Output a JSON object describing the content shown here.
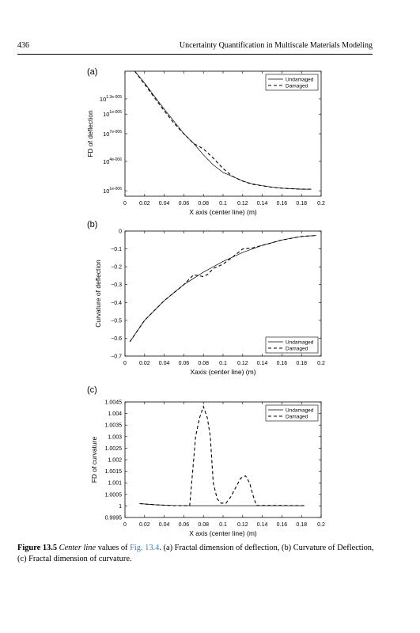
{
  "page": {
    "number": "436",
    "running_title": "Uncertainty Quantification in Multiscale Materials Modeling"
  },
  "caption": {
    "label": "Figure 13.5",
    "italic": "Center line",
    "pre_link": " values of ",
    "link": "Fig. 13.4",
    "rest": ". (a) Fractal dimension of deflection, (b) Curvature of Deflection, (c) Fractal dimension of curvature."
  },
  "chart_data": [
    {
      "type": "line",
      "panel_label": "(a)",
      "xlabel": "X axis (center line) (m)",
      "ylabel": "FD of deflection",
      "xlim": [
        0,
        0.2
      ],
      "ylim": [
        1.0000012,
        1.0000075
      ],
      "x_ticks": [
        0,
        0.02,
        0.04,
        0.06,
        0.08,
        0.1,
        0.12,
        0.14,
        0.16,
        0.18,
        0.2
      ],
      "x_tick_labels": [
        "0",
        "0.02",
        "0.04",
        "0.06",
        "0.08",
        "0.1",
        "0.12",
        "0.14",
        "0.16",
        "0.18",
        "0.2"
      ],
      "y_ticks": [
        1.0000013,
        1.000002,
        1.000003,
        1.000004,
        1.000005
      ],
      "y_tick_labels": [
        {
          "base": "10",
          "exp": "1e-006"
        },
        {
          "base": "10",
          "exp": "4e-006"
        },
        {
          "base": "10",
          "exp": "7e-006"
        },
        {
          "base": "10",
          "exp": "1e-005"
        },
        {
          "base": "10",
          "exp": "1.3e-005"
        }
      ],
      "y_scale": "log",
      "legend_position": "top-right",
      "series": [
        {
          "name": "Undamaged",
          "style": "solid",
          "x": [
            0.01,
            0.02,
            0.03,
            0.04,
            0.05,
            0.06,
            0.07,
            0.08,
            0.09,
            0.1,
            0.11,
            0.12,
            0.13,
            0.14,
            0.15,
            0.16,
            0.17,
            0.18,
            0.19
          ],
          "y": [
            1.0000075,
            1.0000063,
            1.0000052,
            1.0000043,
            1.0000036,
            1.000003,
            1.0000026,
            1.0000022,
            1.0000019,
            1.0000017,
            1.0000016,
            1.0000015,
            1.00000144,
            1.0000014,
            1.00000137,
            1.00000135,
            1.00000134,
            1.00000133,
            1.00000133
          ]
        },
        {
          "name": "Damaged",
          "style": "dashed",
          "x": [
            0.01,
            0.02,
            0.03,
            0.04,
            0.05,
            0.06,
            0.07,
            0.08,
            0.09,
            0.1,
            0.11,
            0.12,
            0.13,
            0.14,
            0.15,
            0.16,
            0.17,
            0.18,
            0.19
          ],
          "y": [
            1.0000075,
            1.0000062,
            1.0000051,
            1.0000042,
            1.0000035,
            1.000003,
            1.0000026,
            1.0000024,
            1.0000021,
            1.0000018,
            1.0000016,
            1.0000015,
            1.00000143,
            1.0000014,
            1.00000137,
            1.00000135,
            1.00000134,
            1.00000133,
            1.00000133
          ]
        }
      ]
    },
    {
      "type": "line",
      "panel_label": "(b)",
      "xlabel": "Xaxis (center line) (m)",
      "ylabel": "Curvature of deflection",
      "xlim": [
        0,
        0.2
      ],
      "ylim": [
        -0.7,
        0
      ],
      "x_ticks": [
        0,
        0.02,
        0.04,
        0.06,
        0.08,
        0.1,
        0.12,
        0.14,
        0.16,
        0.18,
        0.2
      ],
      "x_tick_labels": [
        "0",
        "0.02",
        "0.04",
        "0.06",
        "0.08",
        "0.1",
        "0.12",
        "0.14",
        "0.16",
        "0.18",
        "0.2"
      ],
      "y_ticks": [
        0,
        -0.1,
        -0.2,
        -0.3,
        -0.4,
        -0.5,
        -0.6,
        -0.7
      ],
      "y_tick_labels": [
        "0",
        "−0.1",
        "−0.2",
        "−0.3",
        "−0.4",
        "−0.5",
        "−0.6",
        "−0.7"
      ],
      "legend_position": "bottom-right",
      "series": [
        {
          "name": "Undamaged",
          "style": "solid",
          "x": [
            0.005,
            0.02,
            0.04,
            0.06,
            0.08,
            0.1,
            0.12,
            0.14,
            0.16,
            0.18,
            0.195
          ],
          "y": [
            -0.62,
            -0.5,
            -0.39,
            -0.3,
            -0.23,
            -0.17,
            -0.12,
            -0.08,
            -0.05,
            -0.03,
            -0.025
          ]
        },
        {
          "name": "Damaged",
          "style": "dashed",
          "x": [
            0.005,
            0.02,
            0.04,
            0.06,
            0.07,
            0.075,
            0.08,
            0.085,
            0.09,
            0.1,
            0.11,
            0.12,
            0.13,
            0.14,
            0.16,
            0.18,
            0.195
          ],
          "y": [
            -0.62,
            -0.5,
            -0.39,
            -0.3,
            -0.245,
            -0.25,
            -0.255,
            -0.24,
            -0.21,
            -0.185,
            -0.145,
            -0.1,
            -0.095,
            -0.08,
            -0.05,
            -0.03,
            -0.025
          ]
        }
      ]
    },
    {
      "type": "line",
      "panel_label": "(c)",
      "xlabel": "X axis (center line) (m)",
      "ylabel": "FD of curvature",
      "xlim": [
        0,
        0.2
      ],
      "ylim": [
        0.9995,
        1.0045
      ],
      "x_ticks": [
        0,
        0.02,
        0.04,
        0.06,
        0.08,
        0.1,
        0.12,
        0.14,
        0.16,
        0.18,
        0.2
      ],
      "x_tick_labels": [
        "0",
        "0.02",
        "0.04",
        "0.06",
        "0.08",
        "0.1",
        "0.12",
        "0.14",
        "0.16",
        "0.18",
        "0.2"
      ],
      "y_ticks": [
        0.9995,
        1,
        1.0005,
        1.001,
        1.0015,
        1.002,
        1.0025,
        1.003,
        1.0035,
        1.004,
        1.0045
      ],
      "y_tick_labels": [
        "0.9995",
        "1",
        "1.0005",
        "1.001",
        "1.0015",
        "1.002",
        "1.0025",
        "1.003",
        "1.0035",
        "1.004",
        "1.0045"
      ],
      "legend_position": "top-right",
      "series": [
        {
          "name": "Undamaged",
          "style": "solid",
          "x": [
            0.015,
            0.03,
            0.05,
            0.07,
            0.1,
            0.13,
            0.15,
            0.17,
            0.183
          ],
          "y": [
            1.0001,
            1.00005,
            1.00002,
            1.00001,
            1.00001,
            1.00001,
            1.00001,
            1.00001,
            1.00001
          ]
        },
        {
          "name": "Damaged",
          "style": "dashed",
          "x": [
            0.015,
            0.03,
            0.05,
            0.066,
            0.069,
            0.072,
            0.076,
            0.08,
            0.084,
            0.087,
            0.09,
            0.094,
            0.098,
            0.103,
            0.108,
            0.113,
            0.118,
            0.123,
            0.127,
            0.131,
            0.134,
            0.14,
            0.16,
            0.183
          ],
          "y": [
            1.0001,
            1.00005,
            1.00001,
            1.00001,
            1.0015,
            1.003,
            1.0038,
            1.0043,
            1.0038,
            1.003,
            1.001,
            1.0003,
            1.00012,
            1.00012,
            1.0004,
            1.0008,
            1.0012,
            1.0013,
            1.001,
            1.0004,
            1.00002,
            1.00002,
            1.00002,
            1.00001
          ]
        }
      ]
    }
  ]
}
